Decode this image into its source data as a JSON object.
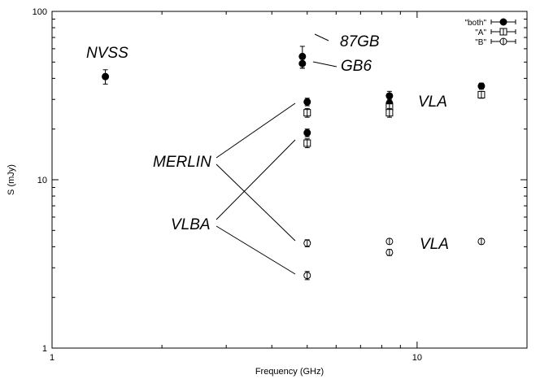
{
  "chart_data": {
    "type": "scatter",
    "title": "",
    "xlabel": "Frequency (GHz)",
    "ylabel": "S (mJy)",
    "x_scale": "log",
    "y_scale": "log",
    "xlim": [
      1,
      20
    ],
    "ylim": [
      1,
      100
    ],
    "x_ticks": [
      {
        "value": 1,
        "label": "1"
      },
      {
        "value": 10,
        "label": "10"
      }
    ],
    "y_ticks": [
      {
        "value": 1,
        "label": "1"
      },
      {
        "value": 10,
        "label": "10"
      },
      {
        "value": 100,
        "label": "100"
      }
    ],
    "grid": false,
    "legend_position": "top-right",
    "series": [
      {
        "name": "\"both\"",
        "marker": "filled-circle",
        "points": [
          {
            "x": 1.4,
            "y": 41,
            "err": 4
          },
          {
            "x": 4.85,
            "y": 54,
            "err": 8
          },
          {
            "x": 4.85,
            "y": 49,
            "err": 3
          },
          {
            "x": 5.0,
            "y": 29,
            "err": 1.5
          },
          {
            "x": 5.0,
            "y": 19,
            "err": 1.0
          },
          {
            "x": 8.4,
            "y": 31.5,
            "err": 2
          },
          {
            "x": 8.4,
            "y": 28.5,
            "err": 1.5
          },
          {
            "x": 15.0,
            "y": 36,
            "err": 1.5
          }
        ]
      },
      {
        "name": "\"A\"",
        "marker": "open-square",
        "points": [
          {
            "x": 5.0,
            "y": 25,
            "err": 1.5
          },
          {
            "x": 5.0,
            "y": 16.5,
            "err": 1.0
          },
          {
            "x": 8.4,
            "y": 27,
            "err": 1.5
          },
          {
            "x": 8.4,
            "y": 25,
            "err": 1.5
          },
          {
            "x": 15.0,
            "y": 32,
            "err": 1.5
          }
        ]
      },
      {
        "name": "\"B\"",
        "marker": "open-circle",
        "points": [
          {
            "x": 5.0,
            "y": 4.2,
            "err": 0.2
          },
          {
            "x": 5.0,
            "y": 2.7,
            "err": 0.15
          },
          {
            "x": 8.4,
            "y": 4.3,
            "err": 0.15
          },
          {
            "x": 8.4,
            "y": 3.7,
            "err": 0.15
          },
          {
            "x": 15.0,
            "y": 4.3,
            "err": 0.15
          }
        ]
      }
    ],
    "annotations": [
      {
        "id": "nvss",
        "text": "NVSS"
      },
      {
        "id": "gb87",
        "text": "87GB"
      },
      {
        "id": "gb6",
        "text": "GB6"
      },
      {
        "id": "vla-top",
        "text": "VLA"
      },
      {
        "id": "merlin",
        "text": "MERLIN"
      },
      {
        "id": "vlba",
        "text": "VLBA"
      },
      {
        "id": "vla-bottom",
        "text": "VLA"
      }
    ]
  }
}
